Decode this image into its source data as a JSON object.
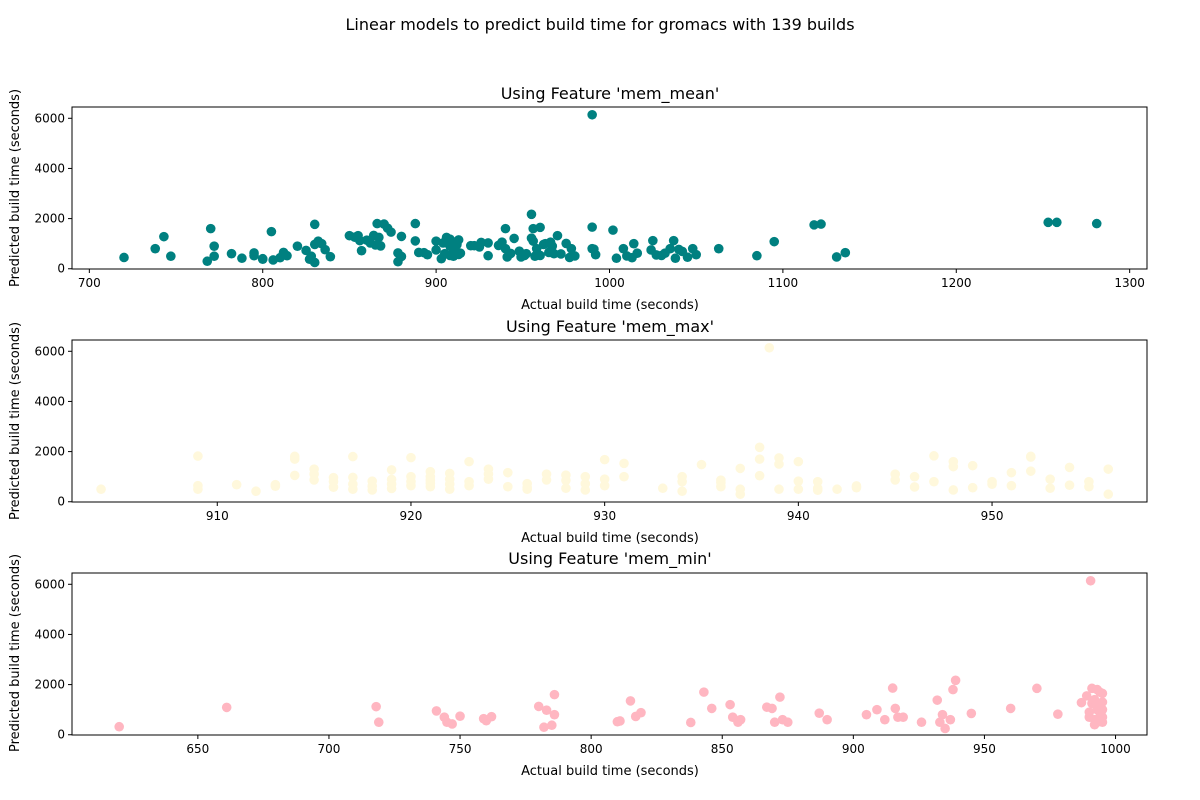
{
  "figure": {
    "suptitle": "Linear models to predict build time for gromacs with 139 builds"
  },
  "chart_data": [
    {
      "type": "scatter",
      "title": "Using Feature 'mem_mean'",
      "xlabel": "Actual build time (seconds)",
      "ylabel": "Predicted build time (seconds)",
      "color": "#008080",
      "xlim": [
        690,
        1310
      ],
      "ylim": [
        -10,
        6450
      ],
      "xticks": [
        700,
        800,
        900,
        1000,
        1100,
        1200,
        1300
      ],
      "yticks": [
        0,
        2000,
        4000,
        6000
      ],
      "x": [
        720,
        738,
        743,
        747,
        768,
        770,
        772,
        772,
        782,
        788,
        795,
        795,
        800,
        800,
        805,
        806,
        810,
        812,
        814,
        820,
        825,
        827,
        828,
        830,
        830,
        830,
        832,
        834,
        836,
        839,
        850,
        853,
        855,
        856,
        857,
        860,
        862,
        864,
        865,
        866,
        867,
        868,
        870,
        872,
        874,
        878,
        878,
        880,
        880,
        888,
        888,
        890,
        893,
        895,
        900,
        900,
        903,
        904,
        905,
        906,
        908,
        908,
        908,
        910,
        910,
        910,
        912,
        913,
        913,
        914,
        920,
        922,
        925,
        926,
        930,
        930,
        936,
        938,
        940,
        940,
        941,
        943,
        945,
        948,
        949,
        951,
        952,
        955,
        955,
        956,
        956,
        957,
        958,
        960,
        960,
        962,
        963,
        965,
        966,
        967,
        968,
        970,
        972,
        975,
        977,
        978,
        980,
        990,
        990,
        991,
        992,
        1002,
        1004,
        1008,
        1010,
        1013,
        1014,
        1016,
        1024,
        1025,
        1027,
        1030,
        1032,
        1035,
        1037,
        1038,
        1040,
        1042,
        1045,
        1048,
        1050,
        1063,
        1085,
        1095,
        1118,
        1122,
        1131,
        1136,
        1253,
        1258,
        1281
      ],
      "y": [
        450,
        800,
        1280,
        500,
        300,
        1600,
        900,
        500,
        600,
        420,
        630,
        520,
        380,
        400,
        1480,
        350,
        440,
        650,
        520,
        900,
        730,
        380,
        500,
        250,
        970,
        1770,
        1100,
        1000,
        760,
        480,
        1320,
        1260,
        1320,
        1120,
        720,
        1140,
        1030,
        1330,
        950,
        1800,
        1250,
        910,
        1780,
        1620,
        1460,
        280,
        630,
        490,
        1290,
        1800,
        1110,
        650,
        640,
        560,
        750,
        1100,
        400,
        1030,
        600,
        1250,
        900,
        1180,
        530,
        730,
        800,
        500,
        960,
        570,
        1150,
        620,
        920,
        920,
        870,
        1050,
        1030,
        520,
        930,
        1060,
        800,
        1600,
        470,
        610,
        1210,
        700,
        470,
        530,
        600,
        2170,
        1220,
        1100,
        1600,
        500,
        800,
        1650,
        530,
        970,
        1000,
        650,
        1060,
        900,
        600,
        1320,
        590,
        1010,
        450,
        800,
        510,
        1660,
        800,
        780,
        560,
        1540,
        420,
        800,
        510,
        440,
        1000,
        620,
        750,
        1120,
        550,
        530,
        620,
        800,
        1120,
        420,
        770,
        690,
        460,
        800,
        560,
        800,
        520,
        1080,
        1750,
        1780,
        470,
        640,
        1850,
        1850,
        1800
      ],
      "outlier": {
        "x": 990,
        "y": 6140
      }
    },
    {
      "type": "scatter",
      "title": "Using Feature 'mem_max'",
      "xlabel": "Actual build time (seconds)",
      "ylabel": "Predicted build time (seconds)",
      "color": "#fff8dc",
      "xlim": [
        902.5,
        958
      ],
      "ylim": [
        -10,
        6450
      ],
      "xticks": [
        910,
        920,
        930,
        940,
        950
      ],
      "yticks": [
        0,
        2000,
        4000,
        6000
      ],
      "x": [
        904,
        909,
        909,
        909,
        911,
        912,
        913,
        913,
        914,
        914,
        914,
        915,
        915,
        915,
        916,
        916,
        916,
        917,
        917,
        917,
        917,
        918,
        918,
        918,
        919,
        919,
        919,
        919,
        920,
        920,
        920,
        920,
        921,
        921,
        921,
        921,
        921,
        922,
        922,
        922,
        922,
        923,
        923,
        923,
        924,
        924,
        924,
        925,
        925,
        926,
        926,
        926,
        927,
        927,
        928,
        928,
        928,
        929,
        929,
        929,
        930,
        930,
        930,
        931,
        931,
        933,
        934,
        934,
        934,
        935,
        936,
        936,
        936,
        937,
        937,
        937,
        938,
        938,
        938,
        939,
        939,
        939,
        940,
        940,
        940,
        941,
        941,
        941,
        942,
        943,
        943,
        945,
        945,
        946,
        946,
        947,
        947,
        948,
        948,
        948,
        949,
        949,
        950,
        950,
        951,
        951,
        952,
        952,
        952,
        953,
        953,
        954,
        954,
        955,
        955,
        956,
        956
      ],
      "y": [
        500,
        1820,
        640,
        500,
        680,
        420,
        620,
        680,
        1810,
        1700,
        1050,
        1300,
        1100,
        870,
        580,
        800,
        960,
        1800,
        700,
        500,
        970,
        820,
        620,
        470,
        1270,
        890,
        530,
        700,
        1760,
        1000,
        800,
        640,
        1200,
        1000,
        860,
        740,
        600,
        1130,
        900,
        700,
        500,
        1600,
        800,
        640,
        1300,
        1100,
        900,
        600,
        1160,
        720,
        500,
        560,
        1100,
        870,
        1060,
        850,
        540,
        1000,
        720,
        470,
        1680,
        900,
        640,
        1530,
        1000,
        540,
        1000,
        800,
        420,
        1480,
        600,
        760,
        860,
        500,
        1330,
        300,
        2170,
        1700,
        1040,
        1750,
        500,
        1500,
        1600,
        820,
        500,
        460,
        800,
        540,
        500,
        560,
        630,
        1100,
        870,
        1000,
        590,
        1830,
        800,
        1600,
        1400,
        470,
        1440,
        560,
        700,
        800,
        1160,
        640,
        1810,
        1780,
        1220,
        900,
        540,
        1370,
        660,
        600,
        800,
        1300,
        300
      ],
      "outlier": {
        "x": 938.5,
        "y": 6140
      }
    },
    {
      "type": "scatter",
      "title": "Using Feature 'mem_min'",
      "xlabel": "Actual build time (seconds)",
      "ylabel": "Predicted build time (seconds)",
      "color": "#ffb6c1",
      "xlim": [
        602,
        1012
      ],
      "ylim": [
        -10,
        6450
      ],
      "xticks": [
        650,
        700,
        750,
        800,
        850,
        900,
        950,
        1000
      ],
      "yticks": [
        0,
        2000,
        4000,
        6000
      ],
      "x": [
        620,
        661,
        718,
        719,
        741,
        744,
        745,
        747,
        750,
        759,
        760,
        762,
        780,
        782,
        783,
        785,
        786,
        786,
        810,
        811,
        815,
        817,
        819,
        838,
        843,
        846,
        853,
        854,
        856,
        857,
        867,
        869,
        870,
        872,
        873,
        875,
        887,
        890,
        905,
        909,
        912,
        915,
        916,
        917,
        919,
        926,
        932,
        933,
        934,
        935,
        937,
        938,
        939,
        945,
        960,
        970,
        978,
        987,
        989,
        990,
        990,
        991,
        991,
        992,
        992,
        992,
        993,
        993,
        993,
        994,
        994,
        994,
        994,
        995,
        995,
        995,
        995,
        995
      ],
      "y": [
        320,
        1090,
        1120,
        500,
        950,
        700,
        500,
        430,
        740,
        640,
        560,
        720,
        1130,
        300,
        980,
        380,
        800,
        1600,
        520,
        550,
        1350,
        730,
        880,
        490,
        1700,
        1050,
        1200,
        700,
        500,
        600,
        1100,
        1050,
        500,
        1500,
        600,
        500,
        860,
        600,
        800,
        1000,
        600,
        1860,
        1050,
        700,
        700,
        500,
        1380,
        500,
        800,
        250,
        600,
        1800,
        2170,
        850,
        1050,
        1850,
        820,
        1280,
        1550,
        700,
        900,
        1850,
        1250,
        600,
        1400,
        400,
        1800,
        1000,
        500,
        1700,
        1200,
        900,
        700,
        1650,
        1300,
        1000,
        700,
        500
      ],
      "outlier": {
        "x": 990.5,
        "y": 6140
      }
    }
  ]
}
